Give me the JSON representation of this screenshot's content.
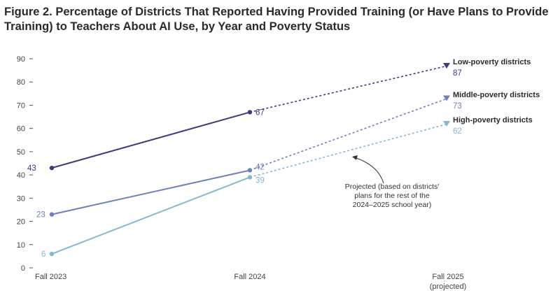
{
  "figure": {
    "label": "Figure 2.",
    "title": "Percentage of Districts That Reported Having Provided Training (or Have Plans to Provide Training) to Teachers About AI Use, by Year and Poverty Status"
  },
  "chart_data": {
    "type": "line",
    "title": "Figure 2. Percentage of Districts That Reported Having Provided Training (or Have Plans to Provide Training) to Teachers About AI Use, by Year and Poverty Status",
    "categories": [
      "Fall 2023",
      "Fall 2024",
      "Fall 2025"
    ],
    "x_tick_labels": [
      [
        "Fall 2023"
      ],
      [
        "Fall 2024"
      ],
      [
        "Fall 2025",
        "(projected)"
      ]
    ],
    "ylim": [
      0,
      90
    ],
    "y_ticks": [
      0,
      10,
      20,
      30,
      40,
      50,
      60,
      70,
      80,
      90
    ],
    "grid": false,
    "legend": "direct labels at right end of each line",
    "projected_from_category": "Fall 2024",
    "series": [
      {
        "name": "Low-poverty districts",
        "values": [
          43,
          67,
          87
        ],
        "color": "#3d3a80"
      },
      {
        "name": "Middle-poverty districts",
        "values": [
          23,
          42,
          73
        ],
        "color": "#6f7fbb"
      },
      {
        "name": "High-poverty districts",
        "values": [
          6,
          39,
          62
        ],
        "color": "#85b8cf"
      }
    ],
    "annotation": {
      "lines": [
        "Projected (based on districts'",
        "plans for the rest of the",
        "2024–2025 school year)"
      ]
    }
  }
}
